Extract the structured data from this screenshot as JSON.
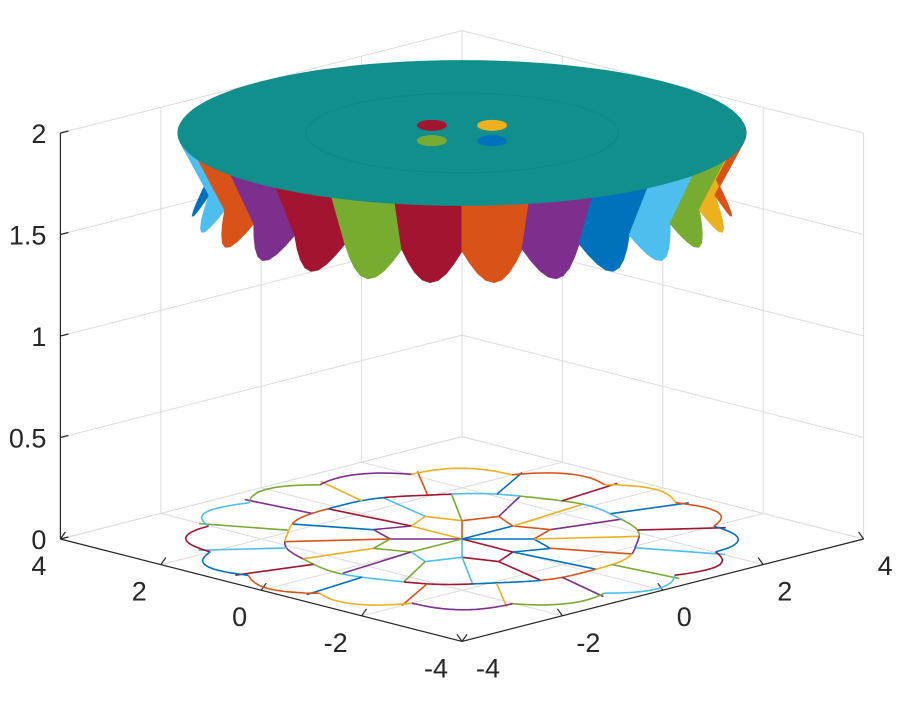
{
  "chart_data": {
    "type": "surface3d",
    "title": "",
    "xlabel": "",
    "ylabel": "",
    "zlabel": "",
    "xlim": [
      -4,
      4
    ],
    "ylim": [
      -4,
      4
    ],
    "zlim": [
      0,
      2
    ],
    "grid": true,
    "x_ticks": [
      -4,
      -2,
      0,
      2,
      4
    ],
    "y_ticks": [
      -4,
      -2,
      0,
      2,
      4
    ],
    "z_ticks": [
      0,
      0.5,
      1,
      1.5,
      2
    ],
    "x_tick_labels": [
      "-4",
      "-2",
      "0",
      "2",
      "4"
    ],
    "y_tick_labels": [
      "-4",
      "-2",
      "0",
      "2",
      "4"
    ],
    "z_tick_labels": [
      "0",
      "0.5",
      "1",
      "1.5",
      "2"
    ],
    "surface": {
      "shape": "disk",
      "radius": 4,
      "height": 2,
      "color": "#108f8c"
    },
    "skirt_segments": {
      "bottom_height": 1.6,
      "colors": [
        "#0072bd",
        "#4dbeee",
        "#d95319",
        "#7e2f8e",
        "#a2142f",
        "#77ac30",
        "#a2142f",
        "#d95319",
        "#7e2f8e",
        "#0072bd",
        "#4dbeee",
        "#77ac30",
        "#edb120",
        "#d95319"
      ]
    },
    "markers": [
      {
        "x": 0,
        "y": 0.6,
        "z": 2,
        "color": "#a2142f"
      },
      {
        "x": 0.6,
        "y": 0,
        "z": 2,
        "color": "#edb120"
      },
      {
        "x": -0.6,
        "y": 0,
        "z": 2,
        "color": "#77ac30"
      },
      {
        "x": 0,
        "y": -0.6,
        "z": 2,
        "color": "#0072bd"
      }
    ],
    "contours": {
      "z": 0,
      "rings": [
        1.35,
        2.65,
        3.85
      ],
      "spokes": 8,
      "outer_cells": 16,
      "colors": [
        "#0072bd",
        "#d95319",
        "#edb120",
        "#7e2f8e",
        "#77ac30",
        "#4dbeee",
        "#a2142f"
      ]
    }
  }
}
